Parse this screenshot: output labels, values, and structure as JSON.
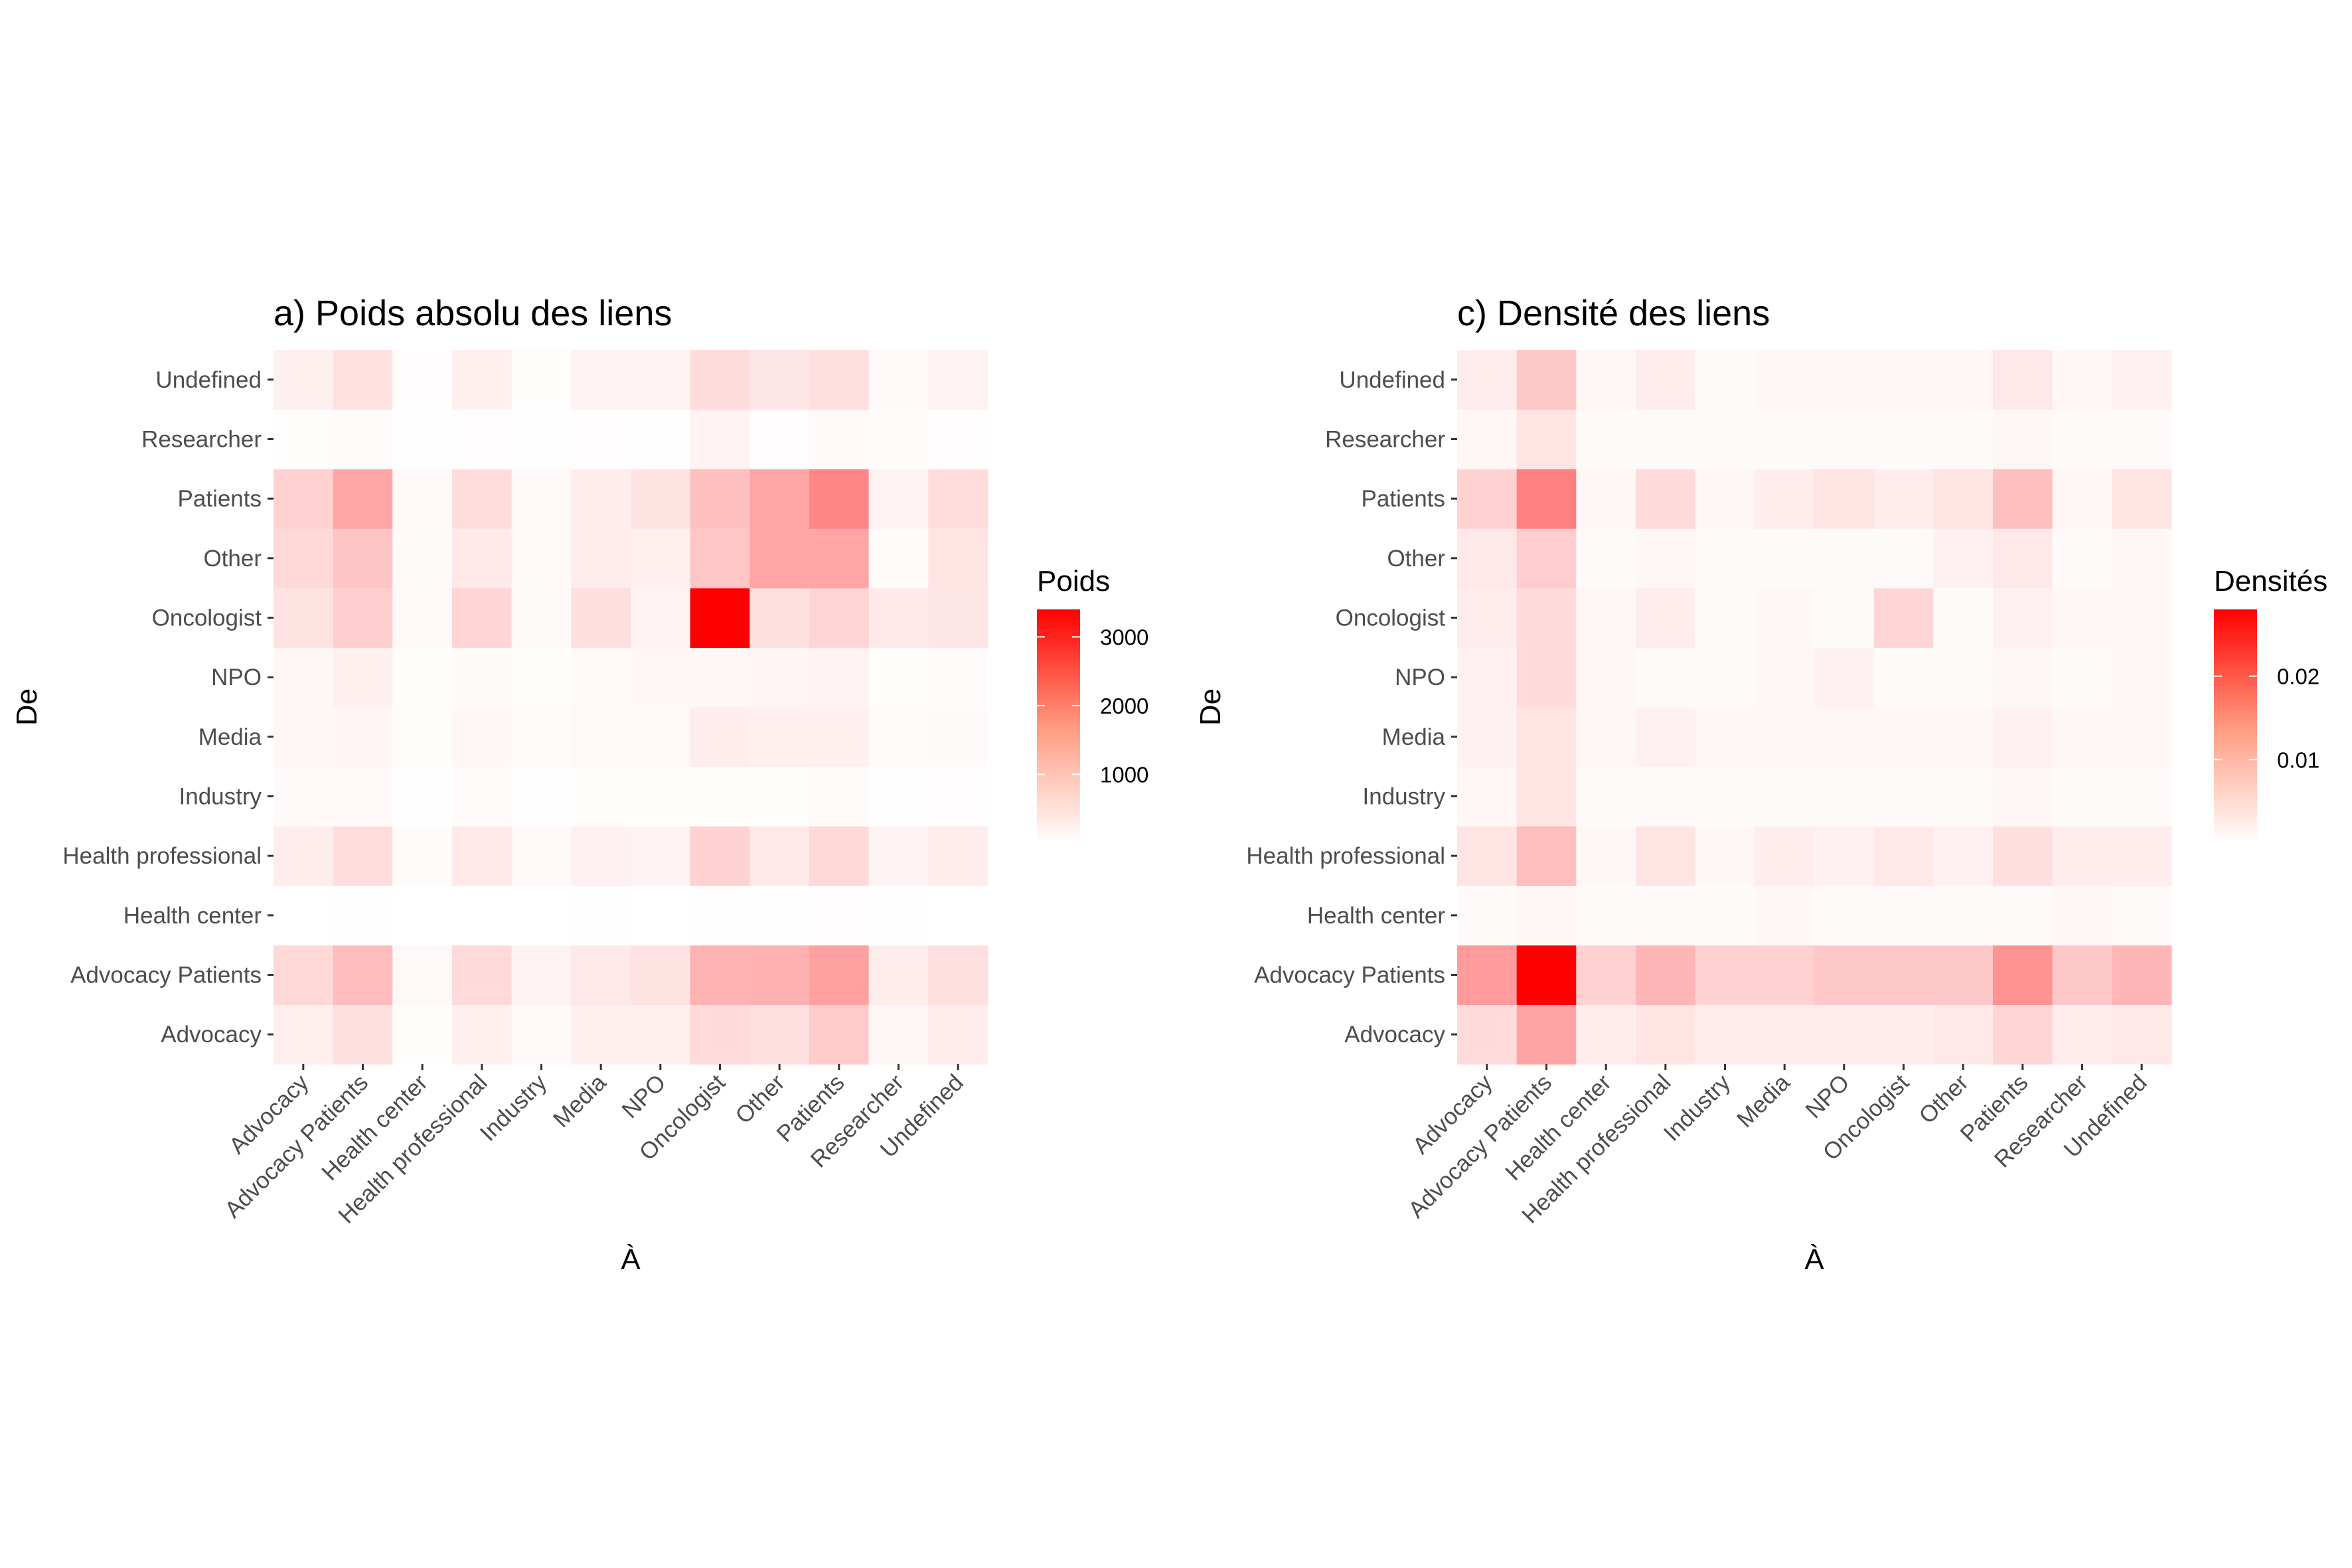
{
  "chart_data": [
    {
      "type": "heatmap",
      "title": "a) Poids absolu des liens",
      "xlabel": "À",
      "ylabel": "De",
      "x_categories": [
        "Advocacy",
        "Advocacy Patients",
        "Health center",
        "Health professional",
        "Industry",
        "Media",
        "NPO",
        "Oncologist",
        "Other",
        "Patients",
        "Researcher",
        "Undefined"
      ],
      "y_categories": [
        "Advocacy",
        "Advocacy Patients",
        "Health center",
        "Health professional",
        "Industry",
        "Media",
        "NPO",
        "Oncologist",
        "Other",
        "Patients",
        "Researcher",
        "Undefined"
      ],
      "legend": {
        "title": "Poids",
        "ticks": [
          "1000",
          "2000",
          "3000"
        ],
        "tick_values": [
          1000,
          2000,
          3000
        ],
        "range": [
          0,
          3400
        ],
        "color_low": "#ffffff",
        "color_high": "#ff0000"
      },
      "values": [
        [
          230,
          420,
          40,
          220,
          80,
          210,
          210,
          500,
          420,
          690,
          120,
          250
        ],
        [
          520,
          900,
          90,
          490,
          170,
          310,
          390,
          1030,
          1060,
          1260,
          260,
          420
        ],
        [
          0,
          10,
          0,
          5,
          0,
          20,
          5,
          20,
          20,
          30,
          10,
          5
        ],
        [
          250,
          460,
          50,
          300,
          80,
          190,
          150,
          620,
          300,
          520,
          150,
          250
        ],
        [
          80,
          100,
          20,
          50,
          20,
          40,
          40,
          40,
          40,
          60,
          20,
          30
        ],
        [
          120,
          140,
          40,
          120,
          50,
          100,
          100,
          260,
          210,
          210,
          60,
          70
        ],
        [
          120,
          200,
          40,
          70,
          40,
          100,
          120,
          120,
          130,
          180,
          40,
          50
        ],
        [
          380,
          640,
          80,
          560,
          70,
          430,
          170,
          3400,
          420,
          580,
          300,
          340
        ],
        [
          520,
          770,
          70,
          300,
          80,
          240,
          210,
          760,
          1200,
          1200,
          50,
          360
        ],
        [
          610,
          1200,
          80,
          460,
          80,
          250,
          370,
          840,
          1200,
          1610,
          180,
          450
        ],
        [
          40,
          50,
          10,
          30,
          10,
          30,
          20,
          170,
          30,
          80,
          50,
          30
        ],
        [
          200,
          400,
          30,
          200,
          40,
          160,
          160,
          470,
          330,
          410,
          100,
          170
        ]
      ]
    },
    {
      "type": "heatmap",
      "title": "c) Densité des liens",
      "xlabel": "À",
      "ylabel": "De",
      "x_categories": [
        "Advocacy",
        "Advocacy Patients",
        "Health center",
        "Health professional",
        "Industry",
        "Media",
        "NPO",
        "Oncologist",
        "Other",
        "Patients",
        "Researcher",
        "Undefined"
      ],
      "y_categories": [
        "Advocacy",
        "Advocacy Patients",
        "Health center",
        "Health professional",
        "Industry",
        "Media",
        "NPO",
        "Oncologist",
        "Other",
        "Patients",
        "Researcher",
        "Undefined"
      ],
      "legend": {
        "title": "Densités",
        "ticks": [
          "0.01",
          "0.02"
        ],
        "tick_values": [
          0.01,
          0.02
        ],
        "range": [
          0.0,
          0.028
        ],
        "color_low": "#ffffff",
        "color_high": "#ff0000"
      },
      "values": [
        [
          0.004,
          0.01,
          0.002,
          0.003,
          0.002,
          0.002,
          0.002,
          0.002,
          0.0025,
          0.0045,
          0.002,
          0.0025
        ],
        [
          0.011,
          0.028,
          0.005,
          0.008,
          0.005,
          0.005,
          0.006,
          0.006,
          0.006,
          0.012,
          0.006,
          0.008
        ],
        [
          0.0005,
          0.001,
          0.0005,
          0.0005,
          0.0005,
          0.001,
          0.0005,
          0.0005,
          0.0005,
          0.0005,
          0.001,
          0.0005
        ],
        [
          0.003,
          0.007,
          0.001,
          0.003,
          0.001,
          0.002,
          0.0015,
          0.0025,
          0.0015,
          0.0035,
          0.002,
          0.002
        ],
        [
          0.001,
          0.003,
          0.0005,
          0.0005,
          0.0005,
          0.0005,
          0.0005,
          0.0005,
          0.0005,
          0.001,
          0.0005,
          0.0005
        ],
        [
          0.0015,
          0.003,
          0.001,
          0.0015,
          0.001,
          0.001,
          0.001,
          0.001,
          0.001,
          0.0015,
          0.001,
          0.001
        ],
        [
          0.0015,
          0.004,
          0.001,
          0.0005,
          0.0005,
          0.001,
          0.0015,
          0.0005,
          0.0005,
          0.001,
          0.0005,
          0.001
        ],
        [
          0.002,
          0.004,
          0.001,
          0.002,
          0.0005,
          0.001,
          0.0005,
          0.0045,
          0.0005,
          0.0015,
          0.001,
          0.001
        ],
        [
          0.0025,
          0.0055,
          0.0005,
          0.001,
          0.0005,
          0.0005,
          0.0005,
          0.0005,
          0.0015,
          0.0025,
          0.0005,
          0.001
        ],
        [
          0.005,
          0.014,
          0.001,
          0.004,
          0.001,
          0.002,
          0.003,
          0.002,
          0.003,
          0.007,
          0.001,
          0.003
        ],
        [
          0.001,
          0.003,
          0.0005,
          0.0005,
          0.0005,
          0.0005,
          0.0005,
          0.0005,
          0.0005,
          0.001,
          0.0005,
          0.0005
        ],
        [
          0.002,
          0.006,
          0.001,
          0.002,
          0.0005,
          0.001,
          0.001,
          0.001,
          0.001,
          0.0025,
          0.001,
          0.0015
        ]
      ]
    }
  ]
}
